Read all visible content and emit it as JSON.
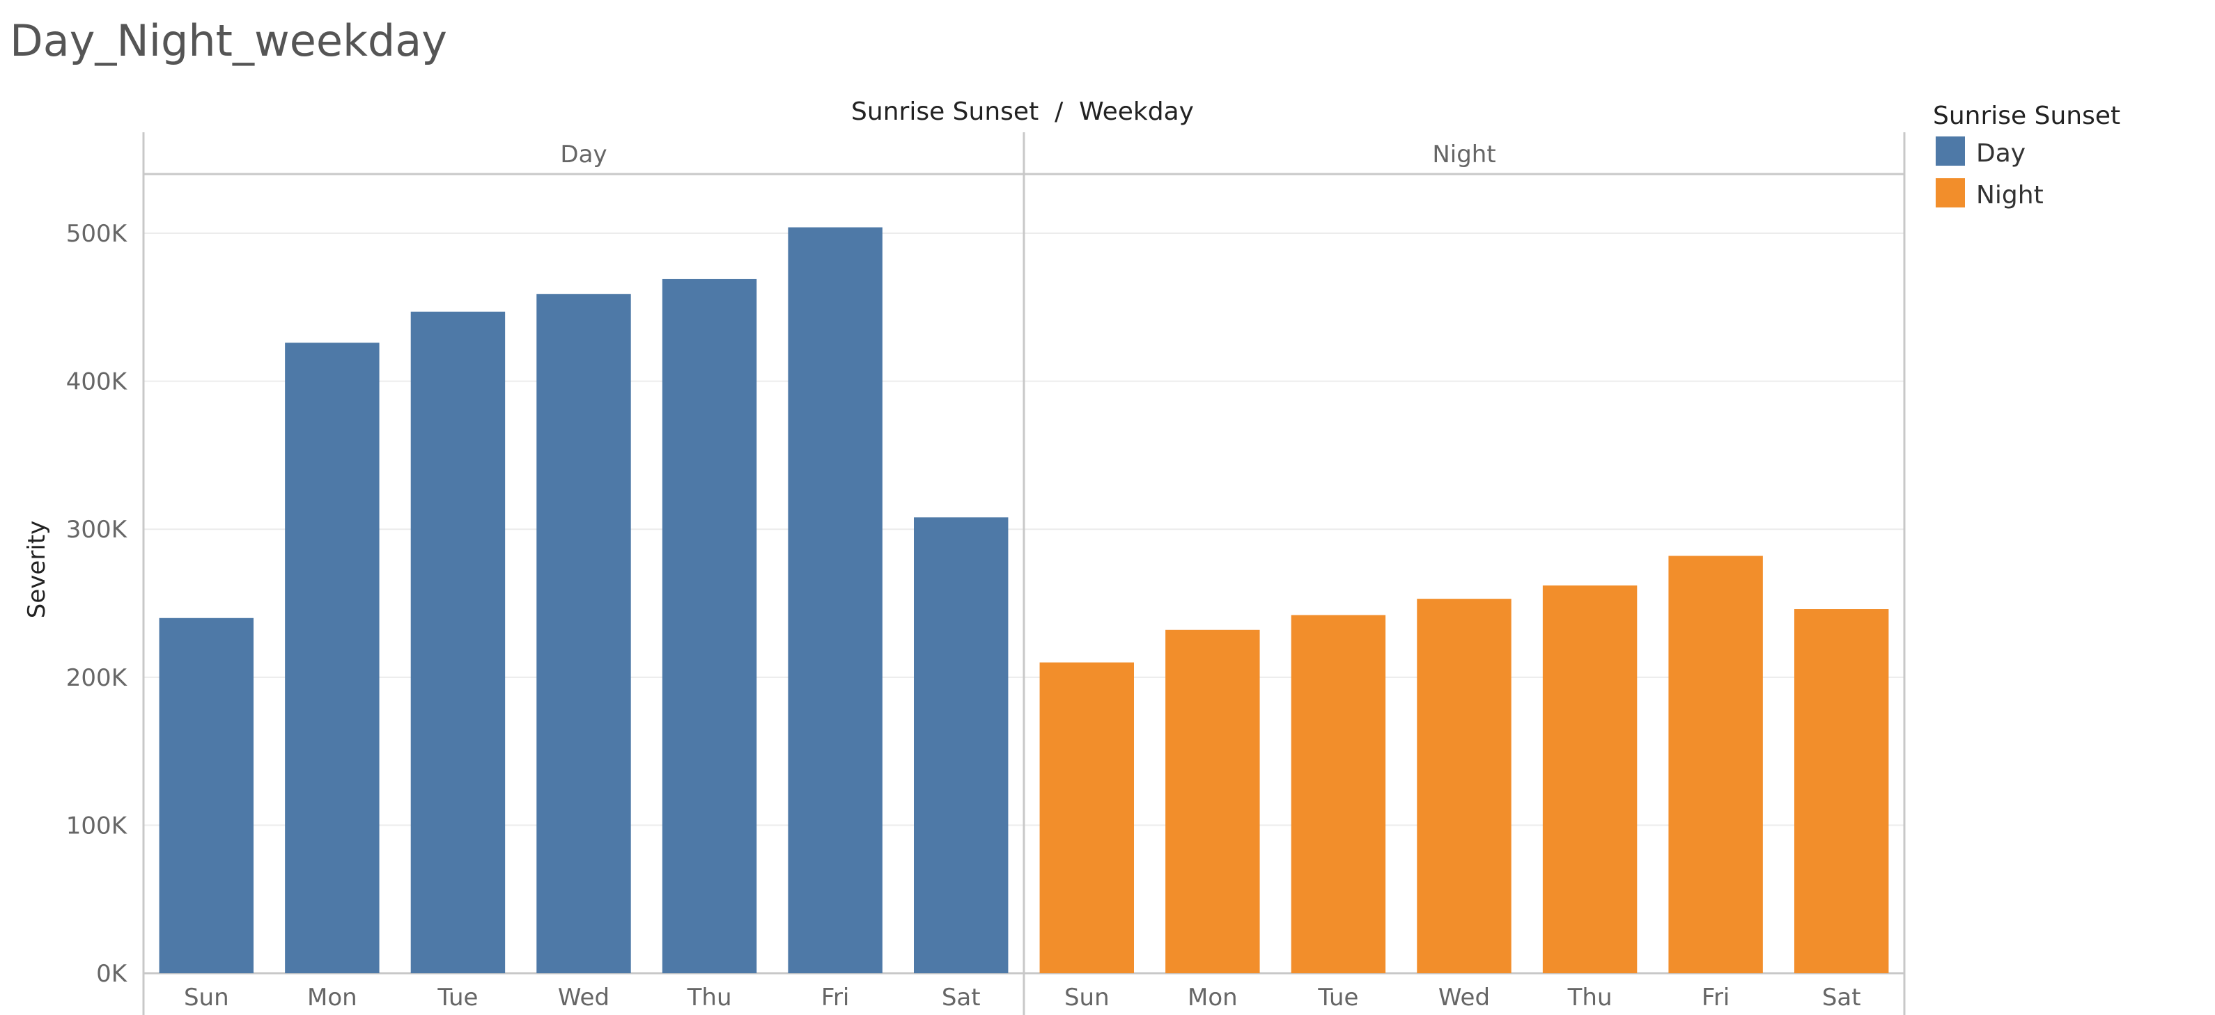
{
  "sheet": {
    "title": "Day_Night_weekday"
  },
  "chart_data": {
    "type": "bar",
    "title": "Day_Night_weekday",
    "column_header": "Sunrise Sunset  /  Weekday",
    "xlabel": "",
    "ylabel": "Severity",
    "ylim": [
      0,
      540000
    ],
    "y_ticks": [
      0,
      100000,
      200000,
      300000,
      400000,
      500000
    ],
    "y_tick_labels": [
      "0K",
      "100K",
      "200K",
      "300K",
      "400K",
      "500K"
    ],
    "grid": true,
    "legend": {
      "title": "Sunrise Sunset",
      "position": "top-right",
      "items": [
        {
          "label": "Day",
          "color": "#4e79a7"
        },
        {
          "label": "Night",
          "color": "#f28e2b"
        }
      ]
    },
    "panels": [
      {
        "name": "Day",
        "color": "#4e79a7",
        "categories": [
          "Sun",
          "Mon",
          "Tue",
          "Wed",
          "Thu",
          "Fri",
          "Sat"
        ],
        "values": [
          240000,
          426000,
          447000,
          459000,
          469000,
          504000,
          308000
        ]
      },
      {
        "name": "Night",
        "color": "#f28e2b",
        "categories": [
          "Sun",
          "Mon",
          "Tue",
          "Wed",
          "Thu",
          "Fri",
          "Sat"
        ],
        "values": [
          210000,
          232000,
          242000,
          253000,
          262000,
          282000,
          246000
        ]
      }
    ]
  }
}
